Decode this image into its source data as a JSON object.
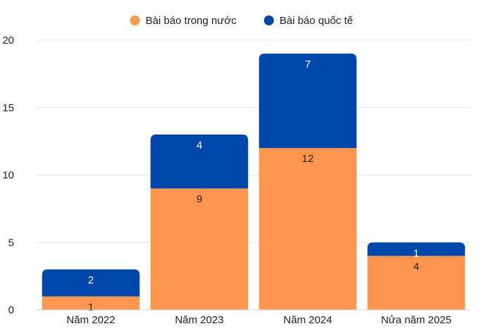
{
  "chart_data": {
    "type": "bar",
    "stacked": true,
    "categories": [
      "Năm 2022",
      "Năm 2023",
      "Năm 2024",
      "Nửa năm 2025"
    ],
    "series": [
      {
        "name": "Bài báo trong nước",
        "values": [
          1,
          9,
          12,
          4
        ],
        "color": "#FF9650"
      },
      {
        "name": "Bài báo quốc tế",
        "values": [
          2,
          4,
          7,
          1
        ],
        "color": "#0047AB"
      }
    ],
    "ylim": [
      0,
      20
    ],
    "yticks": [
      0,
      5,
      10,
      15,
      20
    ],
    "grid": true,
    "legend": "top-center",
    "xlabel": "",
    "ylabel": "",
    "title": ""
  }
}
